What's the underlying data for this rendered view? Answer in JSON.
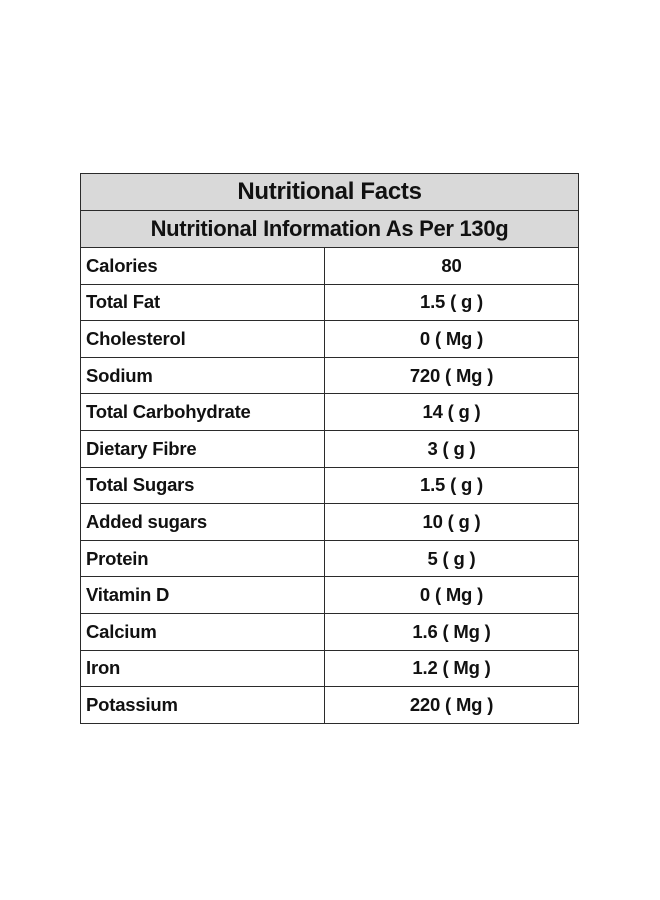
{
  "table": {
    "title": "Nutritional Facts",
    "subtitle": "Nutritional Information As Per 130g",
    "rows": [
      {
        "name": "Calories",
        "value": "80"
      },
      {
        "name": "Total Fat",
        "value": "1.5 ( g )"
      },
      {
        "name": "Cholesterol",
        "value": "0 ( Mg )"
      },
      {
        "name": "Sodium",
        "value": "720 ( Mg )"
      },
      {
        "name": "Total Carbohydrate",
        "value": "14 ( g )"
      },
      {
        "name": "Dietary Fibre",
        "value": "3 ( g )"
      },
      {
        "name": "Total Sugars",
        "value": "1.5 ( g )"
      },
      {
        "name": "Added sugars",
        "value": "10 ( g )"
      },
      {
        "name": "Protein",
        "value": "5 ( g )"
      },
      {
        "name": "Vitamin D",
        "value": "0 ( Mg )"
      },
      {
        "name": "Calcium",
        "value": "1.6 ( Mg )"
      },
      {
        "name": "Iron",
        "value": "1.2 ( Mg )"
      },
      {
        "name": "Potassium",
        "value": "220 ( Mg )"
      }
    ]
  },
  "colors": {
    "header_background": "#d9d9d9",
    "border": "#2b2b2b",
    "text": "#111111"
  }
}
